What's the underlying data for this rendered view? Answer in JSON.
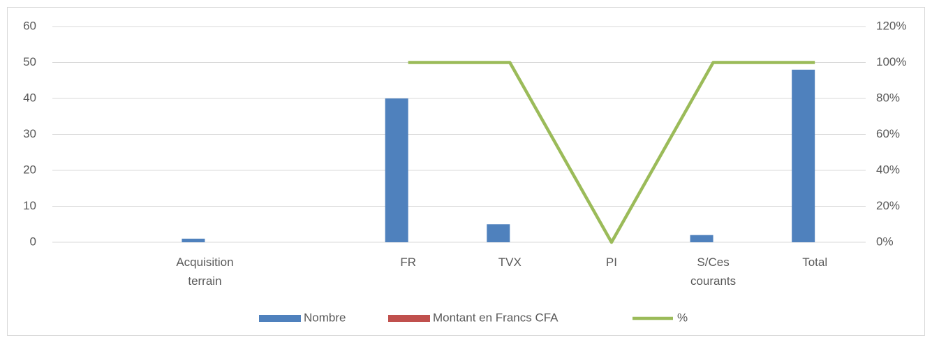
{
  "chart_data": {
    "type": "bar",
    "categories": [
      null,
      "Acquisition terrain",
      null,
      "FR",
      "TVX",
      "PI",
      "S/Ces courants",
      "Total"
    ],
    "series": [
      {
        "name": "Nombre",
        "color": "#4f81bd",
        "values": [
          null,
          1,
          null,
          40,
          5,
          0,
          2,
          48
        ]
      },
      {
        "name": "Montant en Francs CFA",
        "color": "#c0504d",
        "values": [
          null,
          null,
          null,
          null,
          null,
          null,
          null,
          null
        ]
      },
      {
        "name": "%",
        "color": "#9bbb59",
        "type": "line",
        "axis": "y2",
        "values": [
          null,
          null,
          null,
          100,
          100,
          0,
          100,
          100
        ]
      }
    ],
    "ylim": [
      0,
      60
    ],
    "yticks": [
      0,
      10,
      20,
      30,
      40,
      50,
      60
    ],
    "y2lim": [
      0,
      120
    ],
    "y2ticks": [
      {
        "value": 0,
        "label": "0%"
      },
      {
        "value": 20,
        "label": "20%"
      },
      {
        "value": 40,
        "label": "40%"
      },
      {
        "value": 60,
        "label": "60%"
      },
      {
        "value": 80,
        "label": "80%"
      },
      {
        "value": 100,
        "label": "100%"
      },
      {
        "value": 120,
        "label": "120%"
      }
    ],
    "grid": true,
    "legend": "bottom"
  }
}
